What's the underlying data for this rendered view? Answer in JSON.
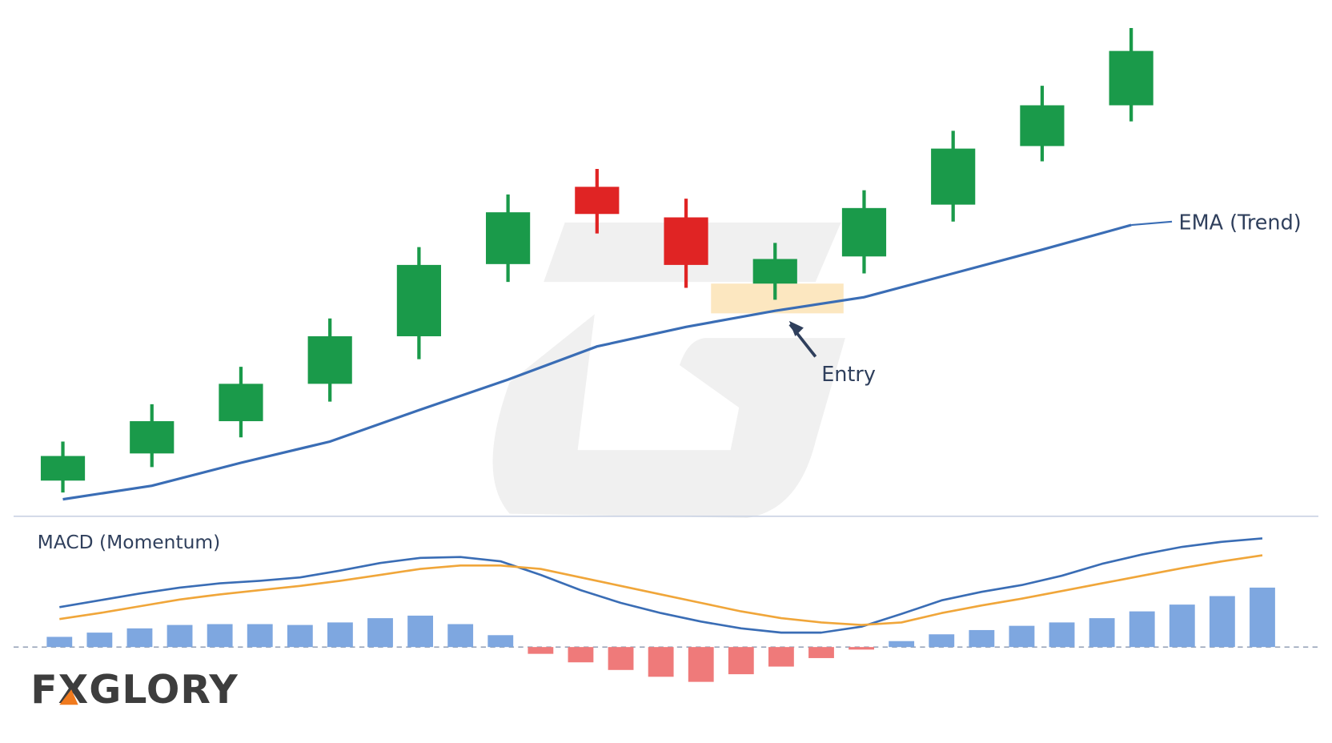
{
  "chart_data": [
    {
      "type": "candlestick",
      "up_color": "#1a9a4a",
      "down_color": "#e02424",
      "open": [
        34,
        66,
        104,
        148,
        204,
        289,
        380,
        344,
        266,
        298,
        359,
        428,
        476
      ],
      "close": [
        63,
        104,
        148,
        204,
        288,
        350,
        348,
        288,
        295,
        355,
        425,
        476,
        540
      ],
      "high": [
        80,
        124,
        168,
        225,
        309,
        371,
        401,
        366,
        314,
        376,
        446,
        499,
        567
      ],
      "low": [
        20,
        50,
        85,
        127,
        177,
        268,
        325,
        261,
        247,
        278,
        339,
        410,
        457
      ],
      "series": [
        {
          "name": "EMA (Trend)",
          "color": "#3a6db5",
          "values": [
            12,
            28,
            55,
            80,
            117,
            153,
            192,
            215,
            234,
            250,
            278,
            306,
            335
          ]
        }
      ],
      "annotation": "Entry",
      "ylim": [
        0,
        600
      ]
    },
    {
      "type": "macd",
      "title": "MACD (Momentum)",
      "series": [
        {
          "color": "#3a6db5",
          "values": [
            47,
            55,
            63,
            70,
            75,
            78,
            82,
            90,
            99,
            105,
            106,
            101,
            85,
            67,
            52,
            40,
            30,
            22,
            17,
            17,
            24,
            39,
            55,
            65,
            73,
            84,
            98,
            109,
            118,
            124,
            128
          ]
        },
        {
          "color": "#f0a63a",
          "values": [
            33,
            40,
            48,
            56,
            62,
            67,
            72,
            78,
            85,
            92,
            96,
            96,
            92,
            82,
            72,
            62,
            52,
            42,
            34,
            29,
            26,
            29,
            40,
            49,
            57,
            66,
            75,
            84,
            93,
            101,
            108
          ]
        }
      ],
      "histogram": {
        "positive_color": "#7ea7e0",
        "negative_color": "#ef7a7a",
        "values": [
          12,
          17,
          22,
          26,
          27,
          27,
          26,
          29,
          34,
          37,
          27,
          14,
          -8,
          -18,
          -27,
          -35,
          -41,
          -32,
          -23,
          -13,
          -3,
          7,
          15,
          20,
          25,
          29,
          34,
          42,
          50,
          60,
          70
        ]
      },
      "ylim": [
        -100,
        140
      ]
    }
  ],
  "logo": "FXGLORY"
}
